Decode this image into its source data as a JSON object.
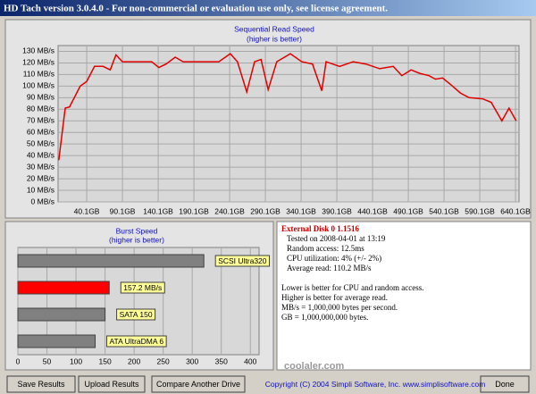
{
  "window": {
    "title": "HD Tach version 3.0.4.0  -  For non-commercial or evaluation use only, see license agreement.",
    "buttons": [
      "Save Results",
      "Upload Results",
      "Compare Another Drive",
      "Done"
    ],
    "copyright": "Copyright (C) 2004 Simpli Software, Inc. www.simplisoftware.com",
    "watermark": "coolaler.com"
  },
  "chart_data": [
    {
      "type": "line",
      "title": "Sequential Read Speed",
      "subtitle": "(higher is better)",
      "color": "#e00000",
      "grid": true,
      "x": [
        1,
        10,
        16,
        31,
        40,
        51,
        63,
        73,
        81,
        90,
        106,
        131,
        141,
        151,
        164,
        175,
        206,
        225,
        241,
        251,
        264,
        275,
        284,
        294,
        306,
        325,
        341,
        356,
        369,
        375,
        394,
        413,
        431,
        450,
        469,
        481,
        494,
        506,
        519,
        528,
        538,
        550,
        563,
        575,
        594,
        606,
        621,
        631,
        641
      ],
      "values": [
        36,
        81,
        82,
        100,
        104,
        117,
        117,
        114,
        127,
        121,
        121,
        121,
        116,
        119,
        125,
        121,
        121,
        121,
        128,
        121,
        95,
        121,
        123,
        97,
        121,
        128,
        121,
        119,
        96,
        121,
        117,
        121,
        119,
        115,
        117,
        109,
        114,
        111,
        109,
        106,
        107,
        101,
        94,
        90,
        89,
        86,
        70,
        81,
        70
      ],
      "xlim": [
        0,
        645
      ],
      "ylim": [
        0,
        135
      ],
      "xticks": [
        {
          "value": 40.1,
          "label": "40.1GB"
        },
        {
          "value": 90.1,
          "label": "90.1GB"
        },
        {
          "value": 140.1,
          "label": "140.1GB"
        },
        {
          "value": 190.1,
          "label": "190.1GB"
        },
        {
          "value": 240.1,
          "label": "240.1GB"
        },
        {
          "value": 290.1,
          "label": "290.1GB"
        },
        {
          "value": 340.1,
          "label": "340.1GB"
        },
        {
          "value": 390.1,
          "label": "390.1GB"
        },
        {
          "value": 440.1,
          "label": "440.1GB"
        },
        {
          "value": 490.1,
          "label": "490.1GB"
        },
        {
          "value": 540.1,
          "label": "540.1GB"
        },
        {
          "value": 590.1,
          "label": "590.1GB"
        },
        {
          "value": 640.1,
          "label": "640.1GB"
        }
      ],
      "yticks": [
        {
          "value": 0,
          "label": "0 MB/s"
        },
        {
          "value": 10,
          "label": "10 MB/s"
        },
        {
          "value": 20,
          "label": "20 MB/s"
        },
        {
          "value": 30,
          "label": "30 MB/s"
        },
        {
          "value": 40,
          "label": "40 MB/s"
        },
        {
          "value": 50,
          "label": "50 MB/s"
        },
        {
          "value": 60,
          "label": "60 MB/s"
        },
        {
          "value": 70,
          "label": "70 MB/s"
        },
        {
          "value": 80,
          "label": "80 MB/s"
        },
        {
          "value": 90,
          "label": "90 MB/s"
        },
        {
          "value": 100,
          "label": "100 MB/s"
        },
        {
          "value": 110,
          "label": "110 MB/s"
        },
        {
          "value": 120,
          "label": "120 MB/s"
        },
        {
          "value": 130,
          "label": "130 MB/s"
        }
      ]
    },
    {
      "type": "hbar",
      "title": "Burst Speed",
      "subtitle": "(higher is better)",
      "grid": true,
      "bars": [
        {
          "name": "SCSI Ultra320",
          "value": 320,
          "color": "#808080"
        },
        {
          "value": 157.2,
          "value_label": "157.2 MB/s",
          "color": "#ff0000"
        },
        {
          "name": "SATA 150",
          "value": 150,
          "color": "#808080"
        },
        {
          "name": "ATA UltraDMA 6",
          "value": 133,
          "color": "#808080"
        }
      ],
      "xlim": [
        0,
        415
      ],
      "xticks": [
        0,
        50,
        100,
        150,
        200,
        250,
        300,
        350,
        400
      ]
    }
  ],
  "info": {
    "drive": "External Disk 0 1.1516",
    "lines": [
      "Tested on 2008-04-01 at 13:19",
      "Random access: 12.5ms",
      "CPU utilization: 4% (+/- 2%)",
      "Average read: 110.2 MB/s"
    ],
    "notes": [
      "Lower is better for CPU and random access.",
      "Higher is better for average read.",
      "MB/s = 1,000,000 bytes per second.",
      "GB = 1,000,000,000 bytes."
    ]
  }
}
